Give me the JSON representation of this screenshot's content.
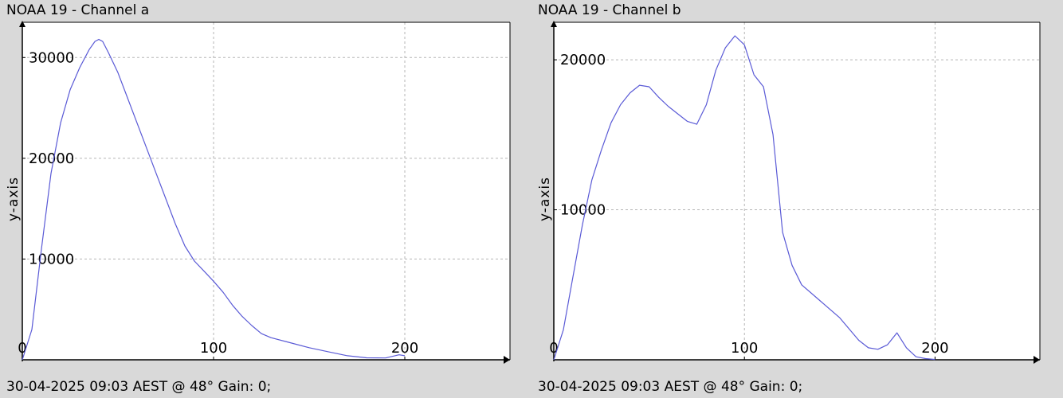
{
  "chart_data": [
    {
      "type": "line",
      "title": "NOAA 19 - Channel a",
      "ylabel": "y-axis",
      "xlabel": "",
      "xlim": [
        0,
        255
      ],
      "ylim": [
        0,
        33500
      ],
      "x_ticks": [
        0,
        100,
        200
      ],
      "y_ticks": [
        10000,
        20000,
        30000
      ],
      "grid": true,
      "status": "30-04-2025 09:03 AEST @ 48° Gain: 0;",
      "color": "#5a5ad6",
      "series": [
        {
          "x": [
            0,
            5,
            10,
            15,
            20,
            25,
            30,
            35,
            38,
            40,
            42,
            45,
            50,
            55,
            60,
            65,
            70,
            75,
            80,
            85,
            90,
            95,
            100,
            105,
            110,
            115,
            120,
            125,
            130,
            140,
            150,
            160,
            170,
            180,
            190,
            197,
            200
          ],
          "y": [
            0,
            3000,
            11000,
            18500,
            23500,
            26800,
            29000,
            30800,
            31600,
            31800,
            31600,
            30500,
            28500,
            26000,
            23500,
            21000,
            18500,
            16000,
            13500,
            11300,
            9800,
            8800,
            7800,
            6700,
            5400,
            4300,
            3400,
            2600,
            2200,
            1700,
            1200,
            800,
            400,
            200,
            180,
            500,
            400
          ]
        }
      ]
    },
    {
      "type": "line",
      "title": "NOAA 19 - Channel b",
      "ylabel": "y-axis",
      "xlabel": "",
      "xlim": [
        0,
        255
      ],
      "ylim": [
        0,
        22500
      ],
      "x_ticks": [
        0,
        100,
        200
      ],
      "y_ticks": [
        10000,
        20000
      ],
      "grid": true,
      "status": "30-04-2025 09:03 AEST @ 48° Gain: 0;",
      "color": "#5a5ad6",
      "series": [
        {
          "x": [
            0,
            5,
            10,
            15,
            20,
            25,
            30,
            35,
            40,
            45,
            50,
            55,
            60,
            65,
            70,
            75,
            80,
            85,
            90,
            95,
            100,
            105,
            110,
            115,
            120,
            125,
            130,
            140,
            150,
            160,
            165,
            170,
            175,
            180,
            185,
            190,
            195,
            200
          ],
          "y": [
            0,
            2000,
            5500,
            9000,
            12000,
            14000,
            15800,
            17000,
            17800,
            18300,
            18200,
            17500,
            16900,
            16400,
            15900,
            15700,
            17000,
            19300,
            20800,
            21600,
            21000,
            19000,
            18200,
            15000,
            8500,
            6300,
            5000,
            3900,
            2800,
            1300,
            800,
            700,
            1000,
            1800,
            800,
            200,
            80,
            20
          ]
        }
      ]
    }
  ]
}
